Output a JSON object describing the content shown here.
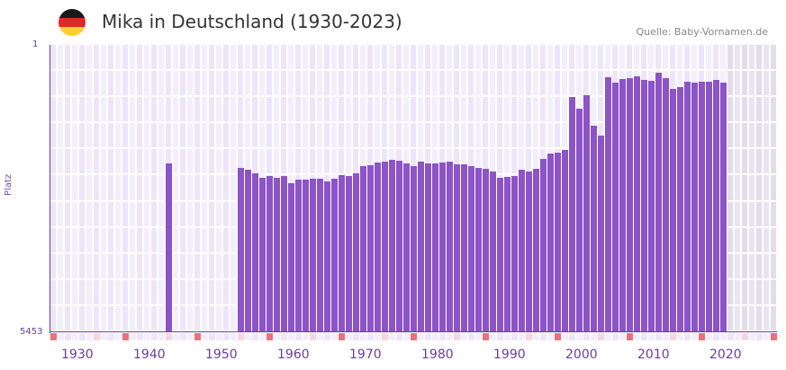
{
  "header": {
    "title": "Mika in Deutschland (1930-2023)",
    "source": "Quelle: Baby-Vornamen.de",
    "flag_colors": [
      "#1a1a1a",
      "#dd2a27",
      "#fdd22f"
    ]
  },
  "colors": {
    "bar": "#8c54c6",
    "axis": "#6a3d9a",
    "grid_a": "#f3eefc",
    "grid_b": "#ece6f8",
    "future_a": "#e8e4f0",
    "future_b": "#e2dcec",
    "marker_strong": "#e5737a",
    "marker_light": "#f5d6de"
  },
  "chart_data": {
    "type": "bar",
    "title": "Mika in Deutschland (1930-2023)",
    "xlabel": "",
    "ylabel": "Platz",
    "y_inverted": true,
    "ylim": [
      5453,
      1
    ],
    "y_ticks": [
      "1",
      "5453"
    ],
    "x_ticks": [
      "1930",
      "1940",
      "1950",
      "1960",
      "1970",
      "1980",
      "1990",
      "2000",
      "2010",
      "2020"
    ],
    "grid": true,
    "legend": null,
    "x_range": [
      1928,
      2028
    ],
    "shaded_future_from": 2022,
    "categories": [
      1944,
      1954,
      1955,
      1956,
      1957,
      1958,
      1959,
      1960,
      1961,
      1962,
      1963,
      1964,
      1965,
      1966,
      1967,
      1968,
      1969,
      1970,
      1971,
      1972,
      1973,
      1974,
      1975,
      1976,
      1977,
      1978,
      1979,
      1980,
      1981,
      1982,
      1983,
      1984,
      1985,
      1986,
      1987,
      1988,
      1989,
      1990,
      1991,
      1992,
      1993,
      1994,
      1995,
      1996,
      1997,
      1998,
      1999,
      2000,
      2001,
      2002,
      2003,
      2004,
      2005,
      2006,
      2007,
      2008,
      2009,
      2010,
      2011,
      2012,
      2013,
      2014,
      2015,
      2016,
      2017,
      2018,
      2019,
      2020,
      2021
    ],
    "values": [
      2250,
      2335,
      2369,
      2437,
      2522,
      2488,
      2522,
      2488,
      2624,
      2556,
      2556,
      2539,
      2539,
      2590,
      2539,
      2471,
      2488,
      2437,
      2301,
      2284,
      2233,
      2216,
      2182,
      2199,
      2250,
      2301,
      2216,
      2250,
      2250,
      2233,
      2216,
      2267,
      2267,
      2301,
      2335,
      2352,
      2403,
      2522,
      2505,
      2488,
      2369,
      2403,
      2352,
      2165,
      2063,
      2046,
      1995,
      990,
      1211,
      956,
      1535,
      1722,
      614,
      717,
      648,
      631,
      597,
      665,
      682,
      529,
      631,
      836,
      802,
      699,
      717,
      699,
      699,
      665,
      717
    ]
  },
  "axis": {
    "y_top": "1",
    "y_bottom": "5453",
    "y_title": "Platz"
  }
}
